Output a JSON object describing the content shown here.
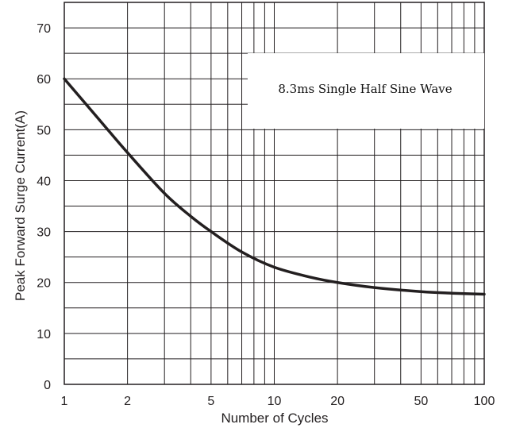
{
  "chart_data": {
    "type": "line",
    "title": "",
    "xlabel": "Number of Cycles",
    "ylabel": "Peak Forward Surge Current(A)",
    "x_scale": "log",
    "xlim": [
      1,
      100
    ],
    "ylim": [
      0,
      75
    ],
    "grid": true,
    "x_ticks": [
      1,
      2,
      5,
      10,
      20,
      50,
      100
    ],
    "x_tick_labels": [
      "1",
      "2",
      "5",
      "10",
      "20",
      "50",
      "100"
    ],
    "y_ticks": [
      0,
      10,
      20,
      30,
      40,
      50,
      60,
      70
    ],
    "y_tick_labels": [
      "0",
      "10",
      "20",
      "30",
      "40",
      "50",
      "60",
      "70"
    ],
    "annotation": "8.3ms Single Half Sine Wave",
    "series": [
      {
        "x": [
          1,
          1.5,
          2,
          3,
          4,
          5,
          7,
          10,
          15,
          20,
          30,
          50,
          70,
          100
        ],
        "y": [
          60,
          51.5,
          45.5,
          37.5,
          33,
          30,
          26,
          23,
          21,
          20,
          19,
          18.2,
          17.9,
          17.7
        ]
      }
    ],
    "colors": {
      "line": "#231f20",
      "grid": "#231f20",
      "text": "#231f20"
    }
  }
}
